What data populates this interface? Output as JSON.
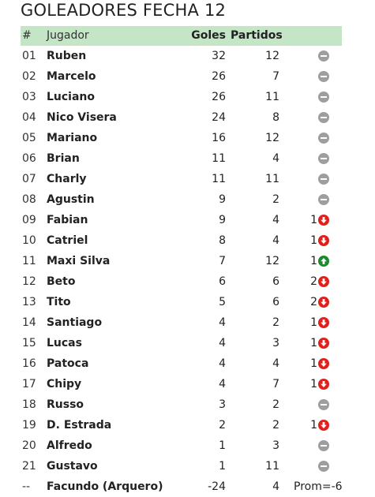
{
  "page": {
    "title": "GOLEADORES FECHA 12"
  },
  "table": {
    "headers": {
      "num": "#",
      "player": "Jugador",
      "goals": "Goles",
      "matches": "Partidos"
    },
    "rows": [
      {
        "num": "01",
        "player": "Ruben",
        "goals": "32",
        "matches": "12",
        "trend_value": "",
        "trend": "neutral"
      },
      {
        "num": "02",
        "player": "Marcelo",
        "goals": "26",
        "matches": "7",
        "trend_value": "",
        "trend": "neutral"
      },
      {
        "num": "03",
        "player": "Luciano",
        "goals": "26",
        "matches": "11",
        "trend_value": "",
        "trend": "neutral"
      },
      {
        "num": "04",
        "player": "Nico Visera",
        "goals": "24",
        "matches": "8",
        "trend_value": "",
        "trend": "neutral"
      },
      {
        "num": "05",
        "player": "Mariano",
        "goals": "16",
        "matches": "12",
        "trend_value": "",
        "trend": "neutral"
      },
      {
        "num": "06",
        "player": "Brian",
        "goals": "11",
        "matches": "4",
        "trend_value": "",
        "trend": "neutral"
      },
      {
        "num": "07",
        "player": "Charly",
        "goals": "11",
        "matches": "11",
        "trend_value": "",
        "trend": "neutral"
      },
      {
        "num": "08",
        "player": "Agustin",
        "goals": "9",
        "matches": "2",
        "trend_value": "",
        "trend": "neutral"
      },
      {
        "num": "09",
        "player": "Fabian",
        "goals": "9",
        "matches": "4",
        "trend_value": "1",
        "trend": "down"
      },
      {
        "num": "10",
        "player": "Catriel",
        "goals": "8",
        "matches": "4",
        "trend_value": "1",
        "trend": "down"
      },
      {
        "num": "11",
        "player": "Maxi Silva",
        "goals": "7",
        "matches": "12",
        "trend_value": "1",
        "trend": "up"
      },
      {
        "num": "12",
        "player": "Beto",
        "goals": "6",
        "matches": "6",
        "trend_value": "2",
        "trend": "down"
      },
      {
        "num": "13",
        "player": "Tito",
        "goals": "5",
        "matches": "6",
        "trend_value": "2",
        "trend": "down"
      },
      {
        "num": "14",
        "player": "Santiago",
        "goals": "4",
        "matches": "2",
        "trend_value": "1",
        "trend": "down"
      },
      {
        "num": "15",
        "player": "Lucas",
        "goals": "4",
        "matches": "3",
        "trend_value": "1",
        "trend": "down"
      },
      {
        "num": "16",
        "player": "Patoca",
        "goals": "4",
        "matches": "4",
        "trend_value": "1",
        "trend": "down"
      },
      {
        "num": "17",
        "player": "Chipy",
        "goals": "4",
        "matches": "7",
        "trend_value": "1",
        "trend": "down"
      },
      {
        "num": "18",
        "player": "Russo",
        "goals": "3",
        "matches": "2",
        "trend_value": "",
        "trend": "neutral"
      },
      {
        "num": "19",
        "player": "D. Estrada",
        "goals": "2",
        "matches": "2",
        "trend_value": "1",
        "trend": "down"
      },
      {
        "num": "20",
        "player": "Alfredo",
        "goals": "1",
        "matches": "3",
        "trend_value": "",
        "trend": "neutral"
      },
      {
        "num": "21",
        "player": "Gustavo",
        "goals": "1",
        "matches": "11",
        "trend_value": "",
        "trend": "neutral"
      }
    ],
    "keeper_row": {
      "num": "--",
      "player": "Facundo (Arquero)",
      "goals": "-24",
      "matches": "4",
      "average": "Prom=-6"
    }
  },
  "icons": {
    "neutral": "minus-circle-icon",
    "down": "arrow-down-circle-icon",
    "up": "arrow-up-circle-icon"
  },
  "colors": {
    "header_bg": "#c5e5c7",
    "neutral": "#9e9e9e",
    "down": "#e0201b",
    "up": "#1a8a2a"
  }
}
